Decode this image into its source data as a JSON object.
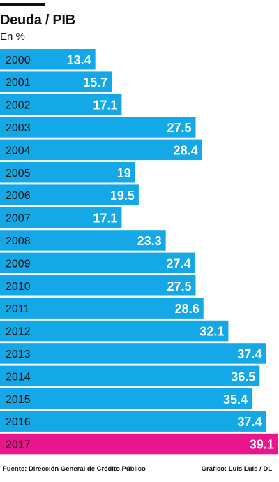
{
  "title": "Deuda / PIB",
  "subtitle": "En %",
  "footer": {
    "source": "Fuente: Dirección General de Crédito Público",
    "credit": "Gráfico: Luis Luis / DL"
  },
  "colors": {
    "bar": "#15a8e6",
    "highlight": "#e8158d",
    "text_dark": "#111111",
    "text_light": "#ffffff"
  },
  "chart_data": {
    "type": "bar",
    "orientation": "horizontal",
    "categories": [
      "2000",
      "2001",
      "2002",
      "2003",
      "2004",
      "2005",
      "2006",
      "2007",
      "2008",
      "2009",
      "2010",
      "2011",
      "2012",
      "2013",
      "2014",
      "2015",
      "2016",
      "2017"
    ],
    "values": [
      13.4,
      15.7,
      17.1,
      27.5,
      28.4,
      19,
      19.5,
      17.1,
      23.3,
      27.4,
      27.5,
      28.6,
      32.1,
      37.4,
      36.5,
      35.4,
      37.4,
      39.1
    ],
    "value_labels": [
      "13.4",
      "15.7",
      "17.1",
      "27.5",
      "28.4",
      "19",
      "19.5",
      "17.1",
      "23.3",
      "27.4",
      "27.5",
      "28.6",
      "32.1",
      "37.4",
      "36.5",
      "35.4",
      "37.4",
      "39.1"
    ],
    "highlight": "2017",
    "title": "Deuda / PIB",
    "xlabel": "",
    "ylabel": "",
    "unit": "En %",
    "grid": false,
    "legend": "none"
  }
}
